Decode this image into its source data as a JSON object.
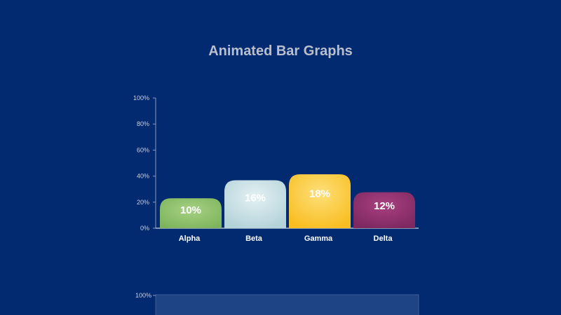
{
  "title": "Animated Bar Graphs",
  "chart_data": [
    {
      "type": "bar",
      "title": "Animated Bar Graphs",
      "categories": [
        "Alpha",
        "Beta",
        "Gamma",
        "Delta"
      ],
      "values": [
        10,
        16,
        18,
        12
      ],
      "value_labels": [
        "10%",
        "16%",
        "18%",
        "12%"
      ],
      "ylim": [
        0,
        100
      ],
      "y_tick_labels": [
        "100%",
        "80%",
        "60%",
        "40%",
        "20%",
        "0%"
      ],
      "colors": [
        "#8cc068",
        "#c9e1e6",
        "#fcc72e",
        "#922f6e"
      ]
    },
    {
      "type": "bar",
      "y_tick_labels": [
        "100%"
      ]
    }
  ]
}
